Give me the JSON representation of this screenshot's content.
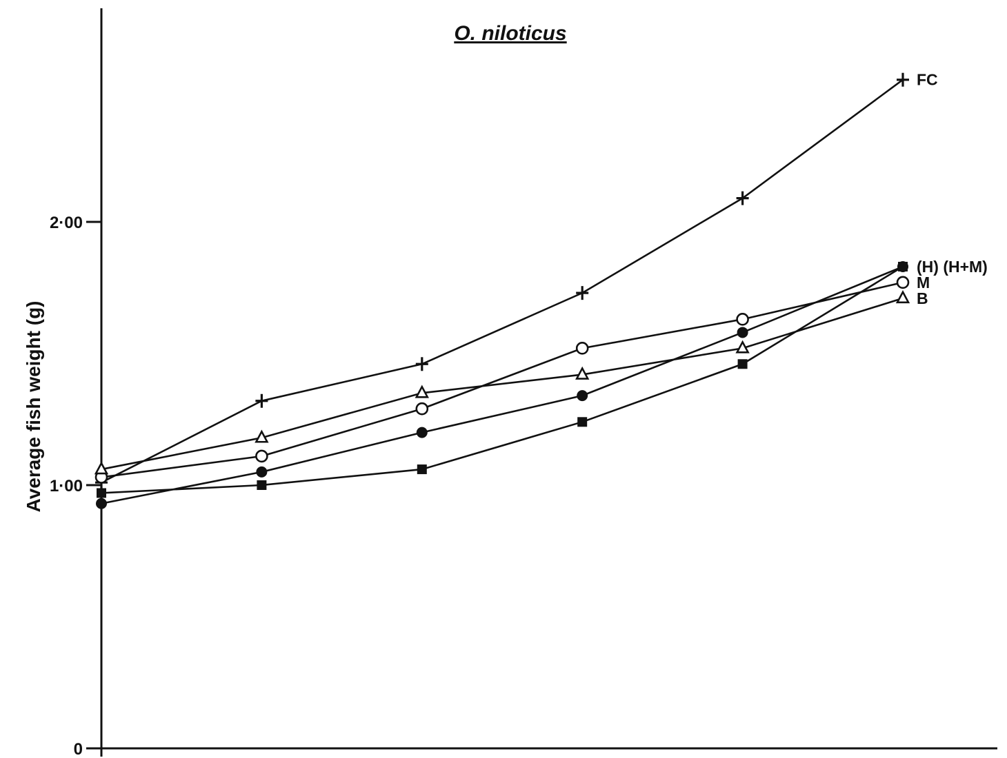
{
  "chart_data": {
    "type": "line",
    "title": "O. niloticus",
    "xlabel": "",
    "ylabel": "Average fish weight (g)",
    "ylim": [
      0,
      2.8
    ],
    "yticks": [
      {
        "value": 0,
        "label": "0"
      },
      {
        "value": 1.0,
        "label": "1·00"
      },
      {
        "value": 2.0,
        "label": "2·00"
      }
    ],
    "x": [
      0,
      1,
      2,
      3,
      4,
      5
    ],
    "grid": false,
    "legend": "direct labels at right end of lines",
    "series": [
      {
        "name": "FC",
        "marker": "plus",
        "values": [
          1.01,
          1.32,
          1.46,
          1.73,
          2.09,
          2.54
        ]
      },
      {
        "name": "(H)",
        "marker": "filled-square",
        "values": [
          0.97,
          1.0,
          1.06,
          1.24,
          1.46,
          1.83
        ]
      },
      {
        "name": "(H+M)",
        "marker": "filled-circle",
        "values": [
          0.93,
          1.05,
          1.2,
          1.34,
          1.58,
          1.83
        ]
      },
      {
        "name": "M",
        "marker": "open-circle",
        "values": [
          1.03,
          1.11,
          1.29,
          1.52,
          1.63,
          1.77
        ]
      },
      {
        "name": "B",
        "marker": "open-triangle",
        "values": [
          1.06,
          1.18,
          1.35,
          1.42,
          1.52,
          1.71
        ]
      }
    ],
    "end_labels": [
      {
        "series": [
          "(H)",
          "(H+M)"
        ],
        "text": "(H) (H+M)"
      },
      {
        "series": [
          "M"
        ],
        "text": "M"
      },
      {
        "series": [
          "B"
        ],
        "text": "B"
      },
      {
        "series": [
          "FC"
        ],
        "text": "FC"
      }
    ]
  }
}
